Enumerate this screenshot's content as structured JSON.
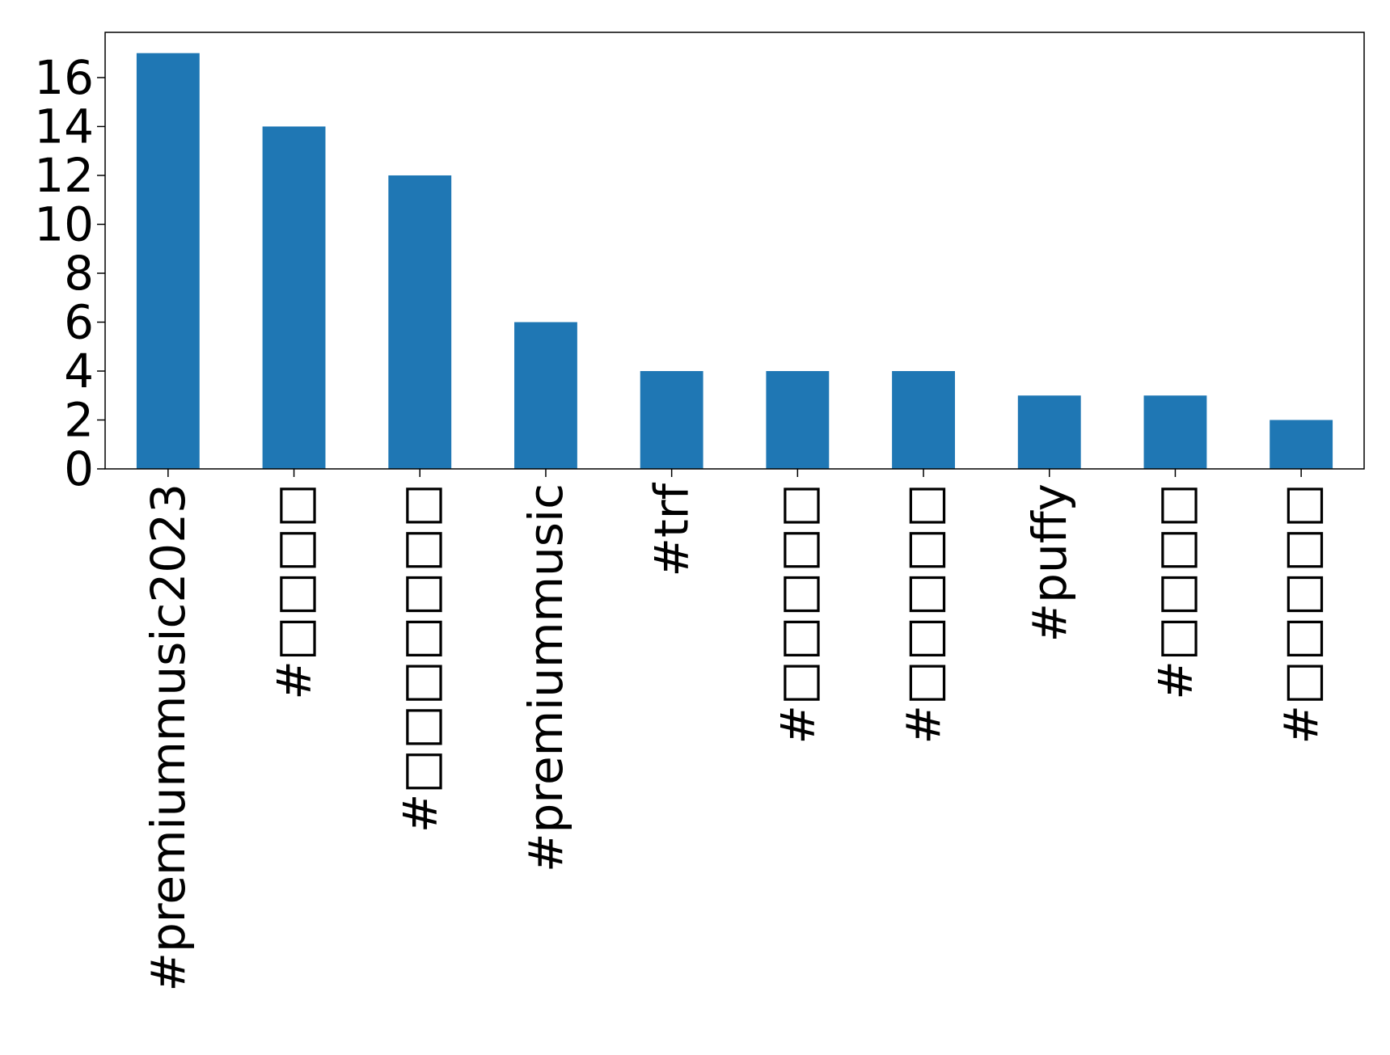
{
  "chart_data": {
    "type": "bar",
    "title": "",
    "xlabel": "",
    "ylabel": "",
    "categories": [
      "#premiummusic2023",
      "#□□□□",
      "#□□□□□□□",
      "#premiummusic",
      "#trf",
      "#□□□□□",
      "#□□□□□",
      "#puffy",
      "#□□□□",
      "#□□□□□"
    ],
    "values": [
      17,
      14,
      12,
      6,
      4,
      4,
      4,
      3,
      3,
      2
    ],
    "ylim": [
      0,
      17.85
    ],
    "yticks": [
      0,
      2,
      4,
      6,
      8,
      10,
      12,
      14,
      16
    ],
    "grid": false,
    "legend": "none",
    "colors": {
      "bar": "#1f77b4",
      "axis": "#000000",
      "background": "#ffffff"
    }
  }
}
